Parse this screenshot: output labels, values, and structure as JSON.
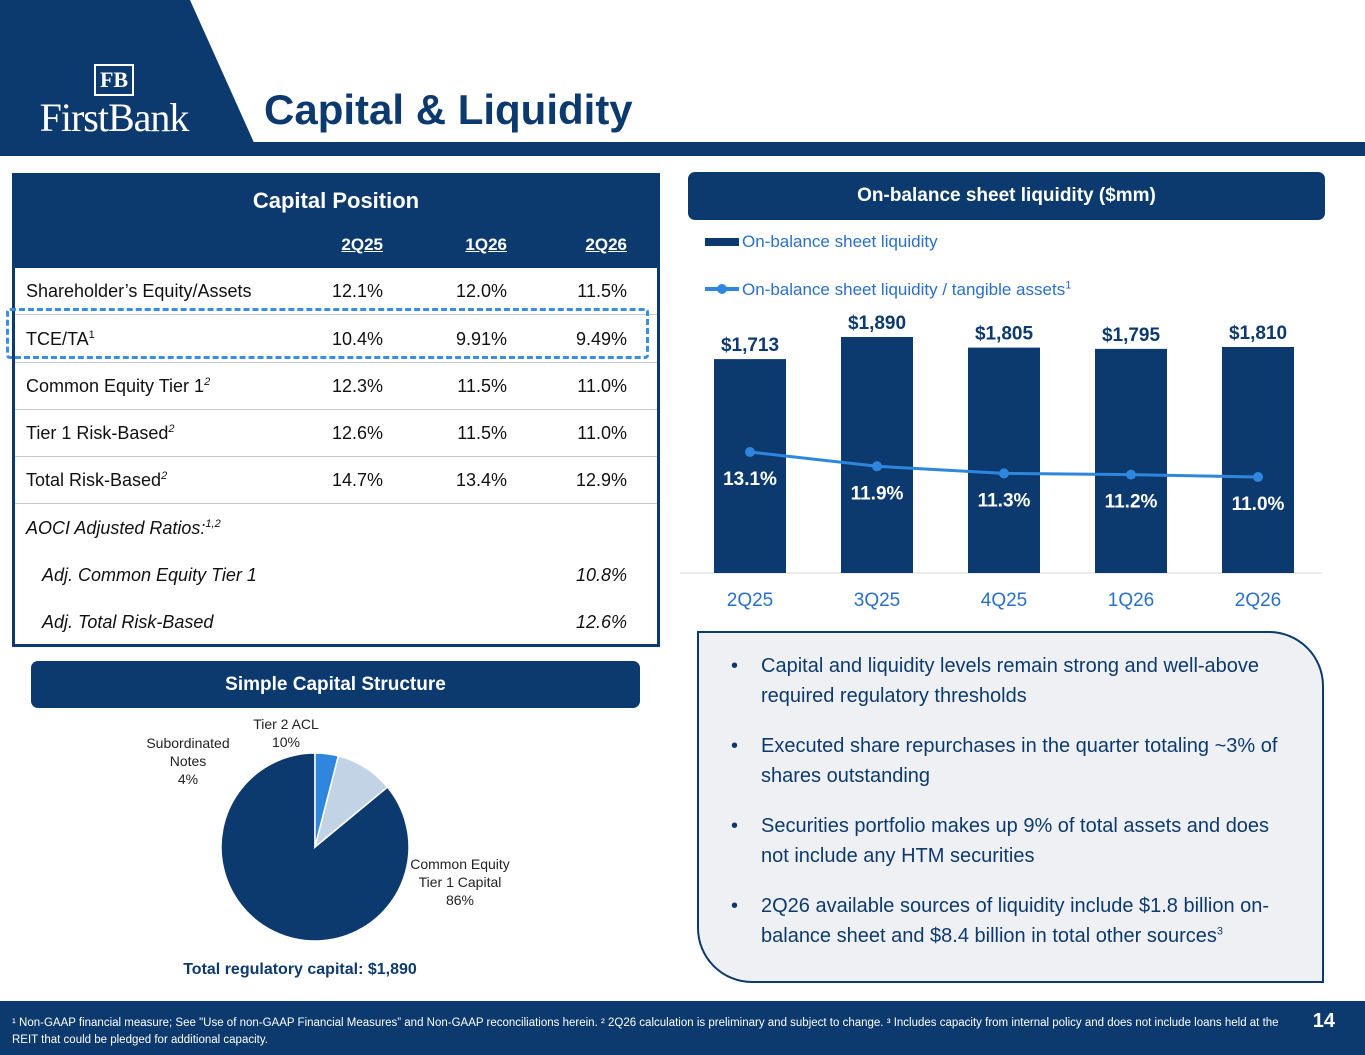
{
  "logo": {
    "mono": "FB",
    "text": "FirstBank"
  },
  "page": {
    "title": "Capital & Liquidity",
    "number": "14"
  },
  "capital_position": {
    "title": "Capital Position",
    "columns": [
      "2Q25",
      "1Q26",
      "2Q26"
    ],
    "rows": [
      {
        "label": "Shareholder’s Equity/Assets",
        "sup": "",
        "values": [
          "12.1%",
          "12.0%",
          "11.5%"
        ]
      },
      {
        "label": "TCE/TA",
        "sup": "1",
        "values": [
          "10.4%",
          "9.91%",
          "9.49%"
        ]
      },
      {
        "label": "Common Equity Tier 1",
        "sup": "2",
        "values": [
          "12.3%",
          "11.5%",
          "11.0%"
        ]
      },
      {
        "label": "Tier 1 Risk-Based",
        "sup": "2",
        "values": [
          "12.6%",
          "11.5%",
          "11.0%"
        ]
      },
      {
        "label": "Total Risk-Based",
        "sup": "2",
        "values": [
          "14.7%",
          "13.4%",
          "12.9%"
        ]
      },
      {
        "label": "AOCI Adjusted Ratios:",
        "sup": "1,2",
        "values": [
          "",
          "",
          ""
        ]
      },
      {
        "label": "Adj. Common Equity Tier 1",
        "sup": "",
        "values": [
          "",
          "",
          "10.8%"
        ]
      },
      {
        "label": "Adj. Total Risk-Based",
        "sup": "",
        "values": [
          "",
          "",
          "12.6%"
        ]
      }
    ]
  },
  "liquidity": {
    "title": "On-balance sheet liquidity ($mm)",
    "legend_bar": "On-balance sheet liquidity",
    "legend_line": "On-balance sheet liquidity / tangible assets",
    "legend_line_sup": "1"
  },
  "capital_structure": {
    "title": "Simple Capital Structure",
    "total": "Total regulatory capital: $1,890"
  },
  "bullets": [
    "Capital and liquidity levels remain strong and well-above required regulatory thresholds",
    "Executed share repurchases in the quarter totaling ~3% of shares outstanding",
    "Securities portfolio makes up 9% of total assets and does not include any HTM securities",
    "2Q26 available sources of liquidity include $1.8 billion on-balance sheet and $8.4 billion in total other sources"
  ],
  "bullet4_sup": "3",
  "footnote": "¹ Non-GAAP financial measure; See \"Use of non-GAAP Financial Measures” and Non-GAAP reconciliations herein. ² 2Q26 calculation is preliminary and subject to change. ³ Includes capacity from internal policy and does not include loans held at the REIT that could be pledged for additional capacity.",
  "chart_data": [
    {
      "type": "bar",
      "categories": [
        "2Q25",
        "3Q25",
        "4Q25",
        "1Q26",
        "2Q26"
      ],
      "series": [
        {
          "name": "On-balance sheet liquidity",
          "type": "bar",
          "values": [
            1713,
            1890,
            1805,
            1795,
            1810
          ],
          "labels": [
            "$1,713",
            "$1,890",
            "$1,805",
            "$1,795",
            "$1,810"
          ],
          "color": "#0d3a6e"
        },
        {
          "name": "On-balance sheet liquidity / tangible assets",
          "type": "line",
          "values": [
            13.1,
            11.9,
            11.3,
            11.2,
            11.0
          ],
          "labels": [
            "13.1%",
            "11.9%",
            "11.3%",
            "11.2%",
            "11.0%"
          ],
          "color": "#2f86de"
        }
      ]
    },
    {
      "type": "pie",
      "slices": [
        {
          "label": "Common Equity Tier 1 Capital",
          "pct_label": "86%",
          "value": 86,
          "color": "#0d3a6e"
        },
        {
          "label": "Subordinated Notes",
          "pct_label": "4%",
          "value": 4,
          "color": "#2f86de"
        },
        {
          "label": "Tier 2 ACL",
          "pct_label": "10%",
          "value": 10,
          "color": "#c3d3e6"
        }
      ]
    }
  ]
}
